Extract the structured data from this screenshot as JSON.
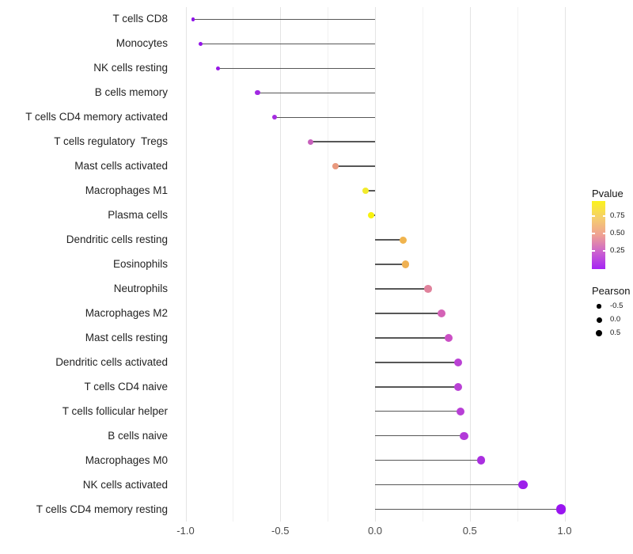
{
  "chart_data": {
    "type": "lollipop",
    "orientation": "horizontal",
    "title": "",
    "xlabel": "",
    "ylabel": "",
    "xlim": [
      -1.07,
      1.08
    ],
    "x_ticks": [
      -1.0,
      -0.5,
      0.0,
      0.5,
      1.0
    ],
    "x_tick_labels": [
      "-1.0",
      "-0.5",
      "0.0",
      "0.5",
      "1.0"
    ],
    "x_minor_ticks": [
      -0.75,
      -0.25,
      0.25,
      0.75
    ],
    "grid": true,
    "stem_color": "#575757",
    "rows": [
      {
        "label": "T cells CD8",
        "pearson": -0.96,
        "dot_color": "#8F13E8"
      },
      {
        "label": "Monocytes",
        "pearson": -0.92,
        "dot_color": "#9315E7"
      },
      {
        "label": "NK cells resting",
        "pearson": -0.83,
        "dot_color": "#9719E6"
      },
      {
        "label": "B cells memory",
        "pearson": -0.62,
        "dot_color": "#A128E2"
      },
      {
        "label": "T cells CD4 memory activated",
        "pearson": -0.53,
        "dot_color": "#A52CE0"
      },
      {
        "label": "T cells regulatory  Tregs",
        "pearson": -0.34,
        "dot_color": "#C760BC"
      },
      {
        "label": "Mast cells activated",
        "pearson": -0.21,
        "dot_color": "#E9997E"
      },
      {
        "label": "Macrophages M1",
        "pearson": -0.05,
        "dot_color": "#F2EB2C"
      },
      {
        "label": "Plasma cells",
        "pearson": -0.02,
        "dot_color": "#F8F20E"
      },
      {
        "label": "Dendritic cells resting",
        "pearson": 0.15,
        "dot_color": "#F0B44E"
      },
      {
        "label": "Eosinophils",
        "pearson": 0.16,
        "dot_color": "#EFB153"
      },
      {
        "label": "Neutrophils",
        "pearson": 0.28,
        "dot_color": "#E0829C"
      },
      {
        "label": "Macrophages M2",
        "pearson": 0.35,
        "dot_color": "#D462B6"
      },
      {
        "label": "Mast cells resting",
        "pearson": 0.39,
        "dot_color": "#CB4FC5"
      },
      {
        "label": "Dendritic cells activated",
        "pearson": 0.44,
        "dot_color": "#BA41D4"
      },
      {
        "label": "T cells CD4 naive",
        "pearson": 0.44,
        "dot_color": "#B941D5"
      },
      {
        "label": "T cells follicular helper",
        "pearson": 0.45,
        "dot_color": "#B83FD6"
      },
      {
        "label": "B cells naive",
        "pearson": 0.47,
        "dot_color": "#B23AD9"
      },
      {
        "label": "Macrophages M0",
        "pearson": 0.56,
        "dot_color": "#AA2FE0"
      },
      {
        "label": "NK cells activated",
        "pearson": 0.78,
        "dot_color": "#9D1FEA"
      },
      {
        "label": "T cells CD4 memory resting",
        "pearson": 0.98,
        "dot_color": "#9915F0"
      }
    ]
  },
  "legend": {
    "pvalue": {
      "title": "Pvalue",
      "tick_labels": [
        "0.75",
        "0.50",
        "0.25"
      ],
      "gradient_stops_top_to_bottom": [
        "#FBF31C",
        "#F5CE6E",
        "#EFA193",
        "#CC63CE",
        "#A524F5"
      ]
    },
    "pearson": {
      "title": "Pearson",
      "dot_color": "#000000",
      "items": [
        {
          "label": "-0.5",
          "diameter": 5.3
        },
        {
          "label": "0.0",
          "diameter": 7.0
        },
        {
          "label": "0.5",
          "diameter": 8.3
        }
      ]
    }
  }
}
